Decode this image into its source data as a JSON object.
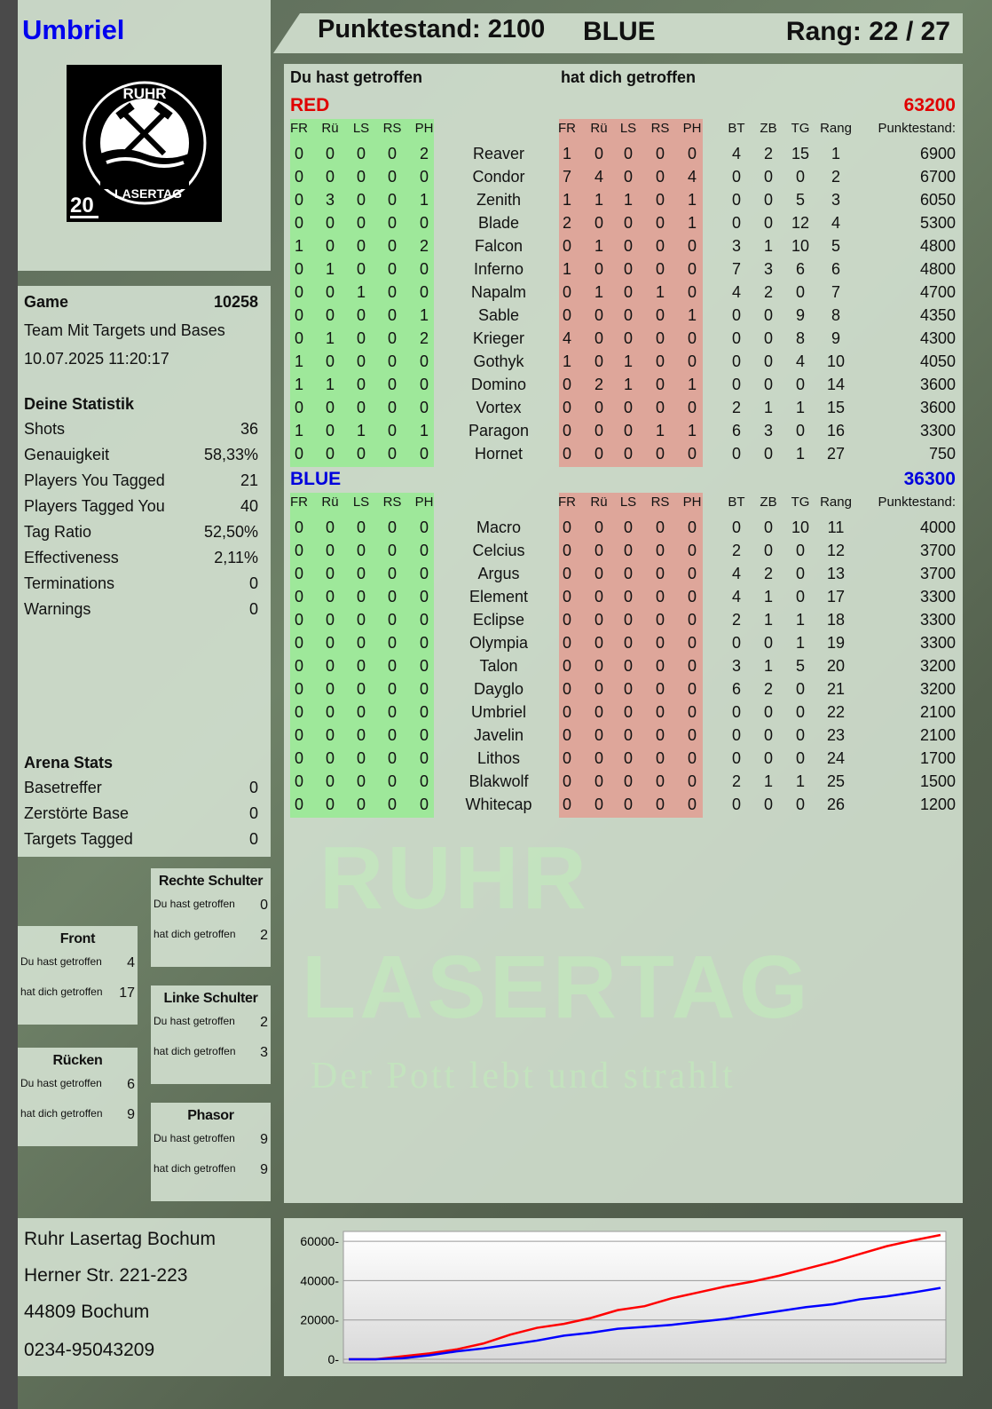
{
  "player": {
    "name": "Umbriel",
    "logo_text": [
      "RUHR",
      "LASERTAG",
      "20"
    ]
  },
  "header": {
    "score": "Punktestand: 2100",
    "team": "BLUE",
    "rank": "Rang: 22 / 27"
  },
  "game": {
    "label": "Game",
    "id": "10258",
    "mode": "Team Mit Targets und Bases",
    "datetime": "10.07.2025 11:20:17"
  },
  "stats": {
    "title": "Deine Statistik",
    "items": [
      {
        "label": "Shots",
        "value": "36"
      },
      {
        "label": "Genauigkeit",
        "value": "58,33%"
      },
      {
        "label": "Players You Tagged",
        "value": "21"
      },
      {
        "label": "Players Tagged You",
        "value": "40"
      },
      {
        "label": "Tag Ratio",
        "value": "52,50%"
      },
      {
        "label": "Effectiveness",
        "value": "2,11%"
      },
      {
        "label": "Terminations",
        "value": "0"
      },
      {
        "label": "Warnings",
        "value": "0"
      }
    ]
  },
  "arena": {
    "title": "Arena Stats",
    "items": [
      {
        "label": "Basetreffer",
        "value": "0"
      },
      {
        "label": "Zerstörte Base",
        "value": "0"
      },
      {
        "label": "Targets Tagged",
        "value": "0"
      }
    ]
  },
  "zones": [
    {
      "title": "Rechte Schulter",
      "you_hit_label": "Du hast getroffen",
      "you_hit": "0",
      "hit_you_label": "hat dich getroffen",
      "hit_you": "2"
    },
    {
      "title": "Front",
      "you_hit_label": "Du hast getroffen",
      "you_hit": "4",
      "hit_you_label": "hat dich getroffen",
      "hit_you": "17"
    },
    {
      "title": "Linke Schulter",
      "you_hit_label": "Du hast getroffen",
      "you_hit": "2",
      "hit_you_label": "hat dich getroffen",
      "hit_you": "3"
    },
    {
      "title": "Rücken",
      "you_hit_label": "Du hast getroffen",
      "you_hit": "6",
      "hit_you_label": "hat dich getroffen",
      "hit_you": "9"
    },
    {
      "title": "Phasor",
      "you_hit_label": "Du hast getroffen",
      "you_hit": "9",
      "hit_you_label": "hat dich getroffen",
      "hit_you": "9"
    }
  ],
  "address": [
    "Ruhr Lasertag Bochum",
    "Herner Str. 221-223",
    "44809 Bochum",
    "0234-95043209"
  ],
  "table": {
    "you_hit_title": "Du hast getroffen",
    "hit_you_title": "hat dich getroffen",
    "hit_columns": [
      "FR",
      "Rü",
      "LS",
      "RS",
      "PH"
    ],
    "stat_columns": [
      "BT",
      "ZB",
      "TG",
      "Rang",
      "Punktestand:"
    ],
    "teams": [
      {
        "name": "RED",
        "total": "63200",
        "color": "#e00000",
        "players": [
          [
            "0",
            "0",
            "0",
            "0",
            "2",
            "Reaver",
            "1",
            "0",
            "0",
            "0",
            "0",
            "4",
            "2",
            "15",
            "1",
            "6900"
          ],
          [
            "0",
            "0",
            "0",
            "0",
            "0",
            "Condor",
            "7",
            "4",
            "0",
            "0",
            "4",
            "0",
            "0",
            "0",
            "2",
            "6700"
          ],
          [
            "0",
            "3",
            "0",
            "0",
            "1",
            "Zenith",
            "1",
            "1",
            "1",
            "0",
            "1",
            "0",
            "0",
            "5",
            "3",
            "6050"
          ],
          [
            "0",
            "0",
            "0",
            "0",
            "0",
            "Blade",
            "2",
            "0",
            "0",
            "0",
            "1",
            "0",
            "0",
            "12",
            "4",
            "5300"
          ],
          [
            "1",
            "0",
            "0",
            "0",
            "2",
            "Falcon",
            "0",
            "1",
            "0",
            "0",
            "0",
            "3",
            "1",
            "10",
            "5",
            "4800"
          ],
          [
            "0",
            "1",
            "0",
            "0",
            "0",
            "Inferno",
            "1",
            "0",
            "0",
            "0",
            "0",
            "7",
            "3",
            "6",
            "6",
            "4800"
          ],
          [
            "0",
            "0",
            "1",
            "0",
            "0",
            "Napalm",
            "0",
            "1",
            "0",
            "1",
            "0",
            "4",
            "2",
            "0",
            "7",
            "4700"
          ],
          [
            "0",
            "0",
            "0",
            "0",
            "1",
            "Sable",
            "0",
            "0",
            "0",
            "0",
            "1",
            "0",
            "0",
            "9",
            "8",
            "4350"
          ],
          [
            "0",
            "1",
            "0",
            "0",
            "2",
            "Krieger",
            "4",
            "0",
            "0",
            "0",
            "0",
            "0",
            "0",
            "8",
            "9",
            "4300"
          ],
          [
            "1",
            "0",
            "0",
            "0",
            "0",
            "Gothyk",
            "1",
            "0",
            "1",
            "0",
            "0",
            "0",
            "0",
            "4",
            "10",
            "4050"
          ],
          [
            "1",
            "1",
            "0",
            "0",
            "0",
            "Domino",
            "0",
            "2",
            "1",
            "0",
            "1",
            "0",
            "0",
            "0",
            "14",
            "3600"
          ],
          [
            "0",
            "0",
            "0",
            "0",
            "0",
            "Vortex",
            "0",
            "0",
            "0",
            "0",
            "0",
            "2",
            "1",
            "1",
            "15",
            "3600"
          ],
          [
            "1",
            "0",
            "1",
            "0",
            "1",
            "Paragon",
            "0",
            "0",
            "0",
            "1",
            "1",
            "6",
            "3",
            "0",
            "16",
            "3300"
          ],
          [
            "0",
            "0",
            "0",
            "0",
            "0",
            "Hornet",
            "0",
            "0",
            "0",
            "0",
            "0",
            "0",
            "0",
            "1",
            "27",
            "750"
          ]
        ]
      },
      {
        "name": "BLUE",
        "total": "36300",
        "color": "#0000dd",
        "players": [
          [
            "0",
            "0",
            "0",
            "0",
            "0",
            "Macro",
            "0",
            "0",
            "0",
            "0",
            "0",
            "0",
            "0",
            "10",
            "11",
            "4000"
          ],
          [
            "0",
            "0",
            "0",
            "0",
            "0",
            "Celcius",
            "0",
            "0",
            "0",
            "0",
            "0",
            "2",
            "0",
            "0",
            "12",
            "3700"
          ],
          [
            "0",
            "0",
            "0",
            "0",
            "0",
            "Argus",
            "0",
            "0",
            "0",
            "0",
            "0",
            "4",
            "2",
            "0",
            "13",
            "3700"
          ],
          [
            "0",
            "0",
            "0",
            "0",
            "0",
            "Element",
            "0",
            "0",
            "0",
            "0",
            "0",
            "4",
            "1",
            "0",
            "17",
            "3300"
          ],
          [
            "0",
            "0",
            "0",
            "0",
            "0",
            "Eclipse",
            "0",
            "0",
            "0",
            "0",
            "0",
            "2",
            "1",
            "1",
            "18",
            "3300"
          ],
          [
            "0",
            "0",
            "0",
            "0",
            "0",
            "Olympia",
            "0",
            "0",
            "0",
            "0",
            "0",
            "0",
            "0",
            "1",
            "19",
            "3300"
          ],
          [
            "0",
            "0",
            "0",
            "0",
            "0",
            "Talon",
            "0",
            "0",
            "0",
            "0",
            "0",
            "3",
            "1",
            "5",
            "20",
            "3200"
          ],
          [
            "0",
            "0",
            "0",
            "0",
            "0",
            "Dayglo",
            "0",
            "0",
            "0",
            "0",
            "0",
            "6",
            "2",
            "0",
            "21",
            "3200"
          ],
          [
            "0",
            "0",
            "0",
            "0",
            "0",
            "Umbriel",
            "0",
            "0",
            "0",
            "0",
            "0",
            "0",
            "0",
            "0",
            "22",
            "2100"
          ],
          [
            "0",
            "0",
            "0",
            "0",
            "0",
            "Javelin",
            "0",
            "0",
            "0",
            "0",
            "0",
            "0",
            "0",
            "0",
            "23",
            "2100"
          ],
          [
            "0",
            "0",
            "0",
            "0",
            "0",
            "Lithos",
            "0",
            "0",
            "0",
            "0",
            "0",
            "0",
            "0",
            "0",
            "24",
            "1700"
          ],
          [
            "0",
            "0",
            "0",
            "0",
            "0",
            "Blakwolf",
            "0",
            "0",
            "0",
            "0",
            "0",
            "2",
            "1",
            "1",
            "25",
            "1500"
          ],
          [
            "0",
            "0",
            "0",
            "0",
            "0",
            "Whitecap",
            "0",
            "0",
            "0",
            "0",
            "0",
            "0",
            "0",
            "0",
            "26",
            "1200"
          ]
        ]
      }
    ]
  },
  "watermark": {
    "line1": "RUHR",
    "line2": "LASERTAG",
    "tagline": "Der Pott lebt und strahlt"
  },
  "colors": {
    "you_hit_band": "#9ee89a",
    "hit_you_band": "#dea69a",
    "red": "#ff0000",
    "blue": "#0000ff",
    "title_blue": "#0000ee"
  },
  "chart_data": {
    "type": "line",
    "ylim": [
      0,
      65000
    ],
    "yticks": [
      0,
      20000,
      40000,
      60000
    ],
    "grid": true,
    "series": [
      {
        "color": "#ff0000",
        "values": [
          0,
          0,
          1500,
          3000,
          5000,
          8000,
          12500,
          16000,
          18000,
          21000,
          25000,
          27000,
          31000,
          34000,
          37000,
          39500,
          42500,
          46000,
          49500,
          53500,
          57500,
          60500,
          63200
        ]
      },
      {
        "color": "#0000ff",
        "values": [
          0,
          0,
          500,
          2000,
          4000,
          5500,
          7500,
          9500,
          12000,
          13500,
          15500,
          16500,
          17500,
          19000,
          20500,
          22500,
          24500,
          26500,
          28000,
          30500,
          32000,
          34000,
          36300
        ]
      }
    ]
  }
}
